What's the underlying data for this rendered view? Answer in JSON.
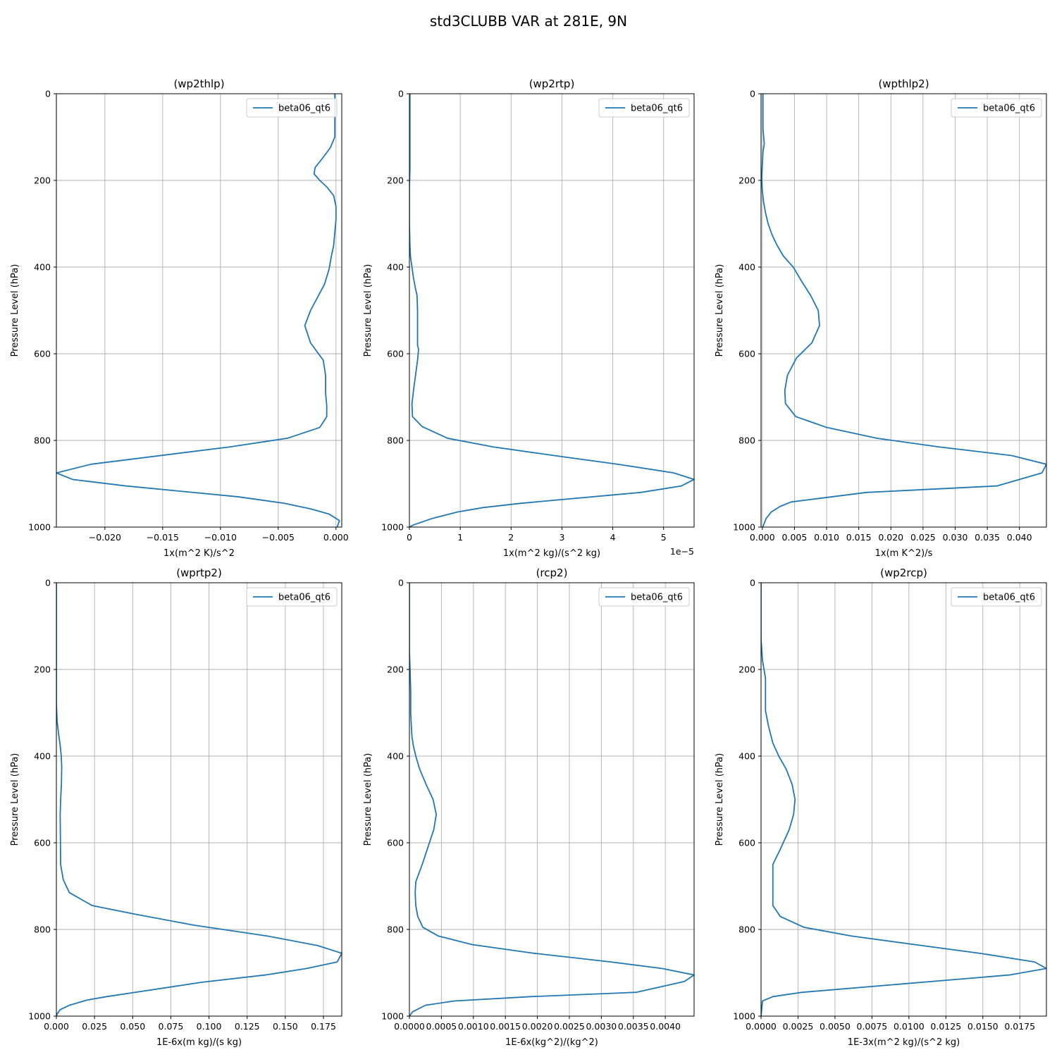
{
  "figure": {
    "suptitle": "std3CLUBB VAR at 281E, 9N",
    "series_color": "#1f77b4",
    "grid_color": "#b0b0b0"
  },
  "chart_data": [
    {
      "type": "line",
      "title": "(wp2thlp)",
      "xlabel": "1x(m^2 K)/s^2",
      "ylabel": "Pressure Level (hPa)",
      "xlim": [
        -0.0242,
        0.0005
      ],
      "ylim": [
        1000,
        0
      ],
      "xticks": [
        -0.02,
        -0.015,
        -0.01,
        -0.005,
        0.0
      ],
      "xtick_labels": [
        "−0.020",
        "−0.015",
        "−0.010",
        "−0.005",
        "0.000"
      ],
      "yticks": [
        0,
        200,
        400,
        600,
        800,
        1000
      ],
      "ytick_labels": [
        "0",
        "200",
        "400",
        "600",
        "800",
        "1000"
      ],
      "offset_text": "",
      "grid": true,
      "legend": "upper right",
      "series": [
        {
          "name": "beta06_qt6",
          "x": [
            -0.0001,
            -0.0001,
            -0.0001,
            -0.0001,
            -0.0001,
            -0.0001,
            -0.0005,
            -0.0012,
            -0.0018,
            -0.0019,
            -0.0014,
            -0.0008,
            -0.0002,
            0.0,
            0.0,
            -0.0001,
            -0.0002,
            -0.0004,
            -0.0006,
            -0.001,
            -0.0022,
            -0.0027,
            -0.0022,
            -0.0011,
            -0.0009,
            -0.0009,
            -0.0008,
            -0.0008,
            -0.0014,
            -0.0042,
            -0.0092,
            -0.0212,
            -0.0242,
            -0.0228,
            -0.0182,
            -0.0085,
            -0.0045,
            -0.0022,
            -0.0006,
            0.0003,
            0.0001
          ],
          "y": [
            0,
            20,
            40,
            60,
            80,
            100,
            125,
            150,
            170,
            185,
            200,
            215,
            235,
            260,
            290,
            320,
            350,
            375,
            405,
            440,
            500,
            535,
            575,
            615,
            650,
            690,
            720,
            745,
            770,
            795,
            815,
            855,
            875,
            890,
            905,
            930,
            945,
            958,
            970,
            985,
            1000
          ]
        }
      ]
    },
    {
      "type": "line",
      "title": "(wp2rtp)",
      "xlabel": "1x(m^2 kg)/(s^2 kg)",
      "ylabel": "Pressure Level (hPa)",
      "xlim": [
        0,
        5.6
      ],
      "ylim": [
        1000,
        0
      ],
      "xticks": [
        0,
        1,
        2,
        3,
        4,
        5
      ],
      "xtick_labels": [
        "0",
        "1",
        "2",
        "3",
        "4",
        "5"
      ],
      "yticks": [
        0,
        200,
        400,
        600,
        800,
        1000
      ],
      "ytick_labels": [
        "0",
        "200",
        "400",
        "600",
        "800",
        "1000"
      ],
      "offset_text": "1e−5",
      "grid": true,
      "legend": "upper right",
      "series": [
        {
          "name": "beta06_qt6",
          "x": [
            0.01,
            0.01,
            0.01,
            0.01,
            0.01,
            0.01,
            0.01,
            0.01,
            0.005,
            0.0,
            0.0,
            0.0,
            0.0,
            0.01,
            0.02,
            0.05,
            0.08,
            0.12,
            0.15,
            0.16,
            0.16,
            0.16,
            0.16,
            0.18,
            0.16,
            0.12,
            0.08,
            0.05,
            0.06,
            0.25,
            0.75,
            1.65,
            2.85,
            4.1,
            5.2,
            5.6,
            5.35,
            4.55,
            2.2,
            1.45,
            0.95,
            0.45,
            0.08,
            0.0
          ],
          "y": [
            0,
            25,
            50,
            75,
            100,
            125,
            150,
            175,
            195,
            210,
            225,
            250,
            300,
            350,
            375,
            400,
            425,
            450,
            465,
            500,
            535,
            570,
            580,
            590,
            615,
            650,
            685,
            715,
            745,
            768,
            795,
            815,
            835,
            855,
            875,
            890,
            905,
            920,
            945,
            955,
            965,
            980,
            995,
            1000
          ]
        }
      ]
    },
    {
      "type": "line",
      "title": "(wpthlp2)",
      "xlabel": "1x(m K^2)/s",
      "ylabel": "Pressure Level (hPa)",
      "xlim": [
        -0.0002,
        0.0442
      ],
      "ylim": [
        1000,
        0
      ],
      "xticks": [
        0.0,
        0.005,
        0.01,
        0.015,
        0.02,
        0.025,
        0.03,
        0.035,
        0.04
      ],
      "xtick_labels": [
        "0.000",
        "0.005",
        "0.010",
        "0.015",
        "0.020",
        "0.025",
        "0.030",
        "0.035",
        "0.040"
      ],
      "yticks": [
        0,
        200,
        400,
        600,
        800,
        1000
      ],
      "ytick_labels": [
        "0",
        "200",
        "400",
        "600",
        "800",
        "1000"
      ],
      "offset_text": "",
      "grid": true,
      "legend": "upper right",
      "series": [
        {
          "name": "beta06_qt6",
          "x": [
            0.0001,
            0.0001,
            0.0001,
            0.0001,
            0.0001,
            0.0003,
            0.0001,
            0.0,
            -0.0001,
            0.0,
            0.0002,
            0.0005,
            0.0009,
            0.0015,
            0.0023,
            0.0033,
            0.0048,
            0.0062,
            0.0075,
            0.0087,
            0.0089,
            0.0077,
            0.0053,
            0.0039,
            0.0035,
            0.0036,
            0.0052,
            0.01,
            0.0178,
            0.0275,
            0.0388,
            0.0442,
            0.0435,
            0.0365,
            0.0162,
            0.0098,
            0.0045,
            0.0028,
            0.0014,
            0.0006,
            0.0002,
            0.0001
          ],
          "y": [
            0,
            20,
            40,
            60,
            80,
            115,
            135,
            165,
            195,
            225,
            250,
            275,
            300,
            325,
            350,
            375,
            400,
            435,
            465,
            500,
            535,
            575,
            610,
            650,
            685,
            715,
            745,
            770,
            795,
            815,
            835,
            855,
            875,
            905,
            920,
            932,
            942,
            952,
            965,
            980,
            995,
            1000
          ]
        }
      ]
    },
    {
      "type": "line",
      "title": "(wprtp2)",
      "xlabel": "1E-6x(m kg)/(s kg)",
      "ylabel": "Pressure Level (hPa)",
      "xlim": [
        0,
        0.187
      ],
      "ylim": [
        1000,
        0
      ],
      "xticks": [
        0.0,
        0.025,
        0.05,
        0.075,
        0.1,
        0.125,
        0.15,
        0.175
      ],
      "xtick_labels": [
        "0.000",
        "0.025",
        "0.050",
        "0.075",
        "0.100",
        "0.125",
        "0.150",
        "0.175"
      ],
      "yticks": [
        0,
        200,
        400,
        600,
        800,
        1000
      ],
      "ytick_labels": [
        "0",
        "200",
        "400",
        "600",
        "800",
        "1000"
      ],
      "offset_text": "",
      "grid": true,
      "legend": "upper right",
      "series": [
        {
          "name": "beta06_qt6",
          "x": [
            0.0,
            0.0,
            0.0,
            0.0,
            0.0005,
            0.0015,
            0.0025,
            0.0032,
            0.0035,
            0.0033,
            0.0028,
            0.0025,
            0.0028,
            0.0045,
            0.0085,
            0.0235,
            0.052,
            0.09,
            0.138,
            0.171,
            0.187,
            0.184,
            0.164,
            0.137,
            0.095,
            0.052,
            0.033,
            0.02,
            0.0085,
            0.0025,
            0.0005,
            0.0
          ],
          "y": [
            0,
            100,
            200,
            280,
            320,
            350,
            375,
            400,
            425,
            465,
            500,
            535,
            650,
            685,
            715,
            745,
            765,
            790,
            815,
            837,
            855,
            875,
            890,
            905,
            922,
            945,
            955,
            963,
            975,
            985,
            995,
            1000
          ]
        }
      ]
    },
    {
      "type": "line",
      "title": "(rcp2)",
      "xlabel": "1E-6x(kg^2)/(kg^2)",
      "ylabel": "Pressure Level (hPa)",
      "xlim": [
        0,
        0.00445
      ],
      "ylim": [
        1000,
        0
      ],
      "xticks": [
        0.0,
        0.0005,
        0.001,
        0.0015,
        0.002,
        0.0025,
        0.003,
        0.0035,
        0.004
      ],
      "xtick_labels": [
        "0.0000",
        "0.0005",
        "0.0010",
        "0.0015",
        "0.0020",
        "0.0025",
        "0.0030",
        "0.0035",
        "0.0040"
      ],
      "yticks": [
        0,
        200,
        400,
        600,
        800,
        1000
      ],
      "ytick_labels": [
        "0",
        "200",
        "400",
        "600",
        "800",
        "1000"
      ],
      "offset_text": "",
      "grid": true,
      "legend": "upper right",
      "series": [
        {
          "name": "beta06_qt6",
          "x": [
            0.0,
            0.0,
            0.0,
            1e-05,
            2e-05,
            2e-05,
            3e-05,
            4e-05,
            6e-05,
            0.0001,
            0.00016,
            0.00026,
            0.00037,
            0.00042,
            0.00038,
            0.0002,
            0.0001,
            9e-05,
            0.0001,
            0.00013,
            0.00021,
            0.00045,
            0.00098,
            0.00195,
            0.00315,
            0.00395,
            0.00445,
            0.0043,
            0.00355,
            0.0019,
            0.0007,
            0.00025,
            5e-05,
            0.0
          ],
          "y": [
            0,
            100,
            160,
            200,
            250,
            300,
            330,
            355,
            375,
            400,
            430,
            465,
            500,
            535,
            570,
            650,
            690,
            715,
            745,
            770,
            795,
            815,
            835,
            855,
            875,
            890,
            905,
            920,
            945,
            955,
            965,
            975,
            990,
            1000
          ]
        }
      ]
    },
    {
      "type": "line",
      "title": "(wp2rcp)",
      "xlabel": "1E-3x(m^2 kg)/(s^2 kg)",
      "ylabel": "Pressure Level (hPa)",
      "xlim": [
        0,
        0.0193
      ],
      "ylim": [
        1000,
        0
      ],
      "xticks": [
        0.0,
        0.0025,
        0.005,
        0.0075,
        0.01,
        0.0125,
        0.015,
        0.0175
      ],
      "xtick_labels": [
        "0.0000",
        "0.0025",
        "0.0050",
        "0.0075",
        "0.0100",
        "0.0125",
        "0.0150",
        "0.0175"
      ],
      "yticks": [
        0,
        200,
        400,
        600,
        800,
        1000
      ],
      "ytick_labels": [
        "0",
        "200",
        "400",
        "600",
        "800",
        "1000"
      ],
      "offset_text": "",
      "grid": true,
      "legend": "upper right",
      "series": [
        {
          "name": "beta06_qt6",
          "x": [
            0.0,
            0.0,
            0.0,
            0.0001,
            0.0003,
            0.0003,
            0.0003,
            0.0005,
            0.0008,
            0.0012,
            0.0017,
            0.0021,
            0.0023,
            0.0022,
            0.0019,
            0.0013,
            0.0008,
            0.0008,
            0.0008,
            0.0013,
            0.0029,
            0.0061,
            0.0104,
            0.0148,
            0.0185,
            0.0193,
            0.0168,
            0.0028,
            0.0008,
            0.0001,
            0.0
          ],
          "y": [
            0,
            50,
            130,
            180,
            220,
            250,
            295,
            330,
            370,
            400,
            430,
            465,
            500,
            535,
            570,
            615,
            650,
            690,
            745,
            770,
            795,
            815,
            835,
            855,
            875,
            890,
            905,
            945,
            955,
            965,
            1000
          ]
        }
      ]
    }
  ]
}
